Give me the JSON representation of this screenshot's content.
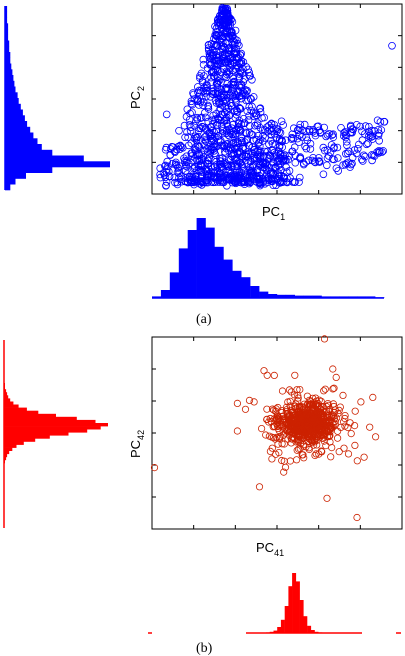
{
  "figure": {
    "panel_a_caption": "(a)",
    "panel_b_caption": "(b)"
  },
  "chart_data": [
    {
      "type": "scatter",
      "panel": "a",
      "xlabel": "PC",
      "xlabel_sub": "1",
      "ylabel": "PC",
      "ylabel_sub": "2",
      "color": "#0000ff",
      "marker": "open-circle",
      "xlim": [
        0,
        10
      ],
      "ylim": [
        0,
        10
      ],
      "grid": false,
      "cluster_description": "dense triangular cluster near the left, rising to a narrow peak, with a sparse tail extending to the right",
      "points_approx": [
        {
          "x": 2.8,
          "y": 9.7
        },
        {
          "x": 2.9,
          "y": 9.2
        },
        {
          "x": 3.0,
          "y": 8.6
        },
        {
          "x": 2.7,
          "y": 8.1
        },
        {
          "x": 3.1,
          "y": 7.7
        },
        {
          "x": 2.6,
          "y": 7.2
        },
        {
          "x": 3.3,
          "y": 6.9
        },
        {
          "x": 2.4,
          "y": 6.4
        },
        {
          "x": 3.5,
          "y": 6.1
        },
        {
          "x": 2.2,
          "y": 5.7
        },
        {
          "x": 3.7,
          "y": 5.3
        },
        {
          "x": 2.0,
          "y": 5.0
        },
        {
          "x": 4.0,
          "y": 4.6
        },
        {
          "x": 1.6,
          "y": 4.3
        },
        {
          "x": 4.4,
          "y": 4.0
        },
        {
          "x": 1.3,
          "y": 3.6
        },
        {
          "x": 5.0,
          "y": 3.3
        },
        {
          "x": 6.0,
          "y": 3.0
        },
        {
          "x": 7.2,
          "y": 3.1
        },
        {
          "x": 8.4,
          "y": 3.3
        },
        {
          "x": 9.3,
          "y": 3.8
        },
        {
          "x": 9.6,
          "y": 7.8
        },
        {
          "x": 6.5,
          "y": 1.7
        },
        {
          "x": 8.0,
          "y": 1.6
        },
        {
          "x": 9.0,
          "y": 2.2
        },
        {
          "x": 0.5,
          "y": 1.0
        },
        {
          "x": 2.0,
          "y": 0.6
        },
        {
          "x": 3.8,
          "y": 0.7
        }
      ]
    },
    {
      "type": "bar",
      "panel": "a",
      "role": "marginal histogram of PC1",
      "color": "#0000ff",
      "values": [
        0.02,
        0.1,
        0.32,
        0.62,
        0.85,
        1.0,
        0.88,
        0.64,
        0.48,
        0.34,
        0.26,
        0.15,
        0.08,
        0.05,
        0.04,
        0.04,
        0.03,
        0.03,
        0.03,
        0.02,
        0.02,
        0.02,
        0.02,
        0.02,
        0.02,
        0.01
      ]
    },
    {
      "type": "bar",
      "panel": "a",
      "role": "marginal histogram of PC2 (horizontal)",
      "color": "#0000ff",
      "values_top_to_bottom": [
        0.02,
        0.02,
        0.02,
        0.03,
        0.03,
        0.03,
        0.04,
        0.04,
        0.05,
        0.05,
        0.06,
        0.07,
        0.08,
        0.09,
        0.1,
        0.12,
        0.13,
        0.15,
        0.17,
        0.19,
        0.21,
        0.24,
        0.27,
        0.31,
        0.35,
        0.45,
        0.75,
        1.0,
        0.45,
        0.2,
        0.1,
        0.05
      ]
    },
    {
      "type": "scatter",
      "panel": "b",
      "xlabel": "PC",
      "xlabel_sub": "41",
      "ylabel": "PC",
      "ylabel_sub": "42",
      "color": "#cc2200",
      "marker": "open-circle",
      "xlim": [
        0,
        10
      ],
      "ylim": [
        0,
        10
      ],
      "grid": false,
      "cluster_description": "roughly circular gaussian cloud centred right of middle with a few outliers",
      "center": {
        "x": 6.2,
        "y": 5.5
      },
      "outliers_approx": [
        {
          "x": 0.1,
          "y": 3.2
        },
        {
          "x": 6.9,
          "y": 9.9
        },
        {
          "x": 8.2,
          "y": 0.6
        },
        {
          "x": 7.0,
          "y": 1.6
        },
        {
          "x": 4.3,
          "y": 2.2
        },
        {
          "x": 3.9,
          "y": 6.7
        }
      ]
    },
    {
      "type": "bar",
      "panel": "b",
      "role": "marginal histogram of PC41",
      "color": "#ff0000",
      "values": [
        0.01,
        0.02,
        0.04,
        0.1,
        0.22,
        0.45,
        0.78,
        1.0,
        0.86,
        0.55,
        0.28,
        0.12,
        0.05,
        0.02,
        0.01
      ]
    },
    {
      "type": "bar",
      "panel": "b",
      "role": "marginal histogram of PC42 (horizontal)",
      "color": "#ff0000",
      "values_top_to_bottom": [
        0.01,
        0.01,
        0.02,
        0.03,
        0.04,
        0.06,
        0.09,
        0.14,
        0.22,
        0.33,
        0.5,
        0.7,
        0.88,
        1.0,
        0.93,
        0.8,
        0.62,
        0.44,
        0.3,
        0.19,
        0.12,
        0.08,
        0.05,
        0.03,
        0.02,
        0.01
      ]
    }
  ]
}
